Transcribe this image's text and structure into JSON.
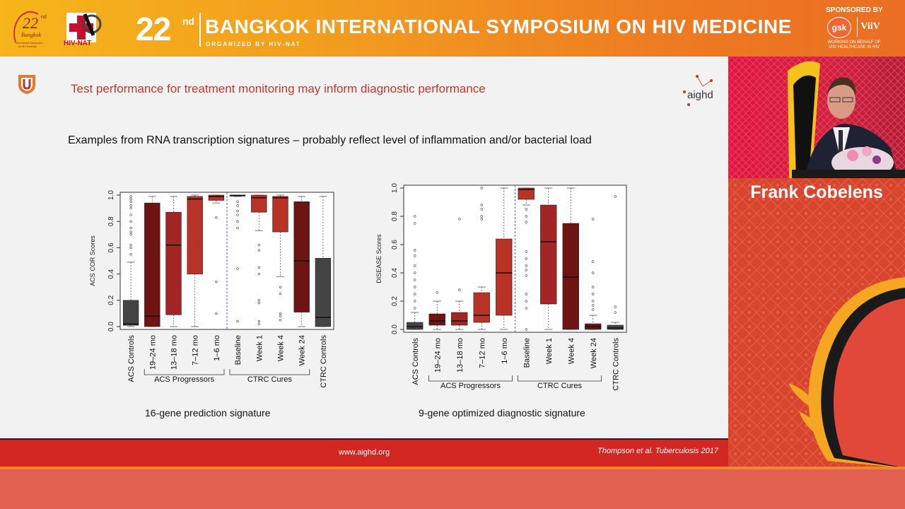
{
  "banner": {
    "edition": "22",
    "edition_sup": "nd",
    "title": "BANGKOK INTERNATIONAL SYMPOSIUM ON HIV MEDICINE",
    "organized_by": "ORGANIZED BY HIV-NAT",
    "logo_text": "HIV-NAT",
    "sponsored_by": "SPONSORED BY",
    "sponsor1": "gsk",
    "sponsor2": "ViiV",
    "sponsor_tag": "WORKING ON BEHALF OF VIIV HEALTHCARE IN HIV"
  },
  "slide": {
    "title": "Test performance for treatment monitoring may inform diagnostic performance",
    "logo": "aighd",
    "subtitle": "Examples from RNA transcription signatures – probably reflect level of inflammation and/or bacterial load",
    "footer_url": "www.aighd.org",
    "reference": "Thompson et al. Tuberculosis 2017"
  },
  "speaker": {
    "name": "Frank Cobelens"
  },
  "colors": {
    "dark_box": "#444444",
    "maroon": "#6e1414",
    "red": "#a42525",
    "bright_red": "#b83226",
    "accent_title": "#c0392b",
    "footer": "#d32724"
  },
  "chart_data": [
    {
      "type": "box",
      "title": "16-gene prediction signature",
      "ylabel": "ACS COR Scores",
      "ylim": [
        0,
        1
      ],
      "yticks": [
        "0.0",
        "0.2",
        "0.4",
        "0.6",
        "0.8",
        "1.0"
      ],
      "categories": [
        "ACS Controls",
        "19–24 mo",
        "13–18 mo",
        "7–12 mo",
        "1–6 mo",
        "Baseline",
        "Week 1",
        "Week 4",
        "Week 24",
        "CTRC Controls"
      ],
      "groups": [
        {
          "label": "ACS Progressors",
          "from": 1,
          "to": 4
        },
        {
          "label": "CTRC Cures",
          "from": 5,
          "to": 8
        }
      ],
      "boxes": [
        {
          "q1": 0.01,
          "median": 0.02,
          "q3": 0.2,
          "lo": 0.0,
          "hi": 0.49,
          "color": "dark"
        },
        {
          "q1": 0.0,
          "median": 0.08,
          "q3": 0.94,
          "lo": 0.0,
          "hi": 0.99,
          "color": "maroon"
        },
        {
          "q1": 0.09,
          "median": 0.62,
          "q3": 0.87,
          "lo": 0.0,
          "hi": 0.99,
          "color": "red"
        },
        {
          "q1": 0.4,
          "median": 0.97,
          "q3": 0.99,
          "lo": 0.0,
          "hi": 1.0,
          "color": "bright"
        },
        {
          "q1": 0.96,
          "median": 0.99,
          "q3": 1.0,
          "lo": 0.94,
          "hi": 1.0,
          "color": "bright"
        },
        {
          "q1": 0.995,
          "median": 0.998,
          "q3": 1.0,
          "lo": 0.99,
          "hi": 1.0,
          "color": "dark"
        },
        {
          "q1": 0.87,
          "median": 0.98,
          "q3": 1.0,
          "lo": 0.73,
          "hi": 1.0,
          "color": "bright"
        },
        {
          "q1": 0.72,
          "median": 0.98,
          "q3": 0.99,
          "lo": 0.38,
          "hi": 1.0,
          "color": "bright"
        },
        {
          "q1": 0.11,
          "median": 0.5,
          "q3": 0.95,
          "lo": 0.0,
          "hi": 0.99,
          "color": "maroon"
        },
        {
          "q1": 0.0,
          "median": 0.07,
          "q3": 0.52,
          "lo": 0.0,
          "hi": 0.99,
          "color": "dark"
        }
      ],
      "outliers": [
        [
          0.55,
          0.6,
          0.62,
          0.7,
          0.72,
          0.75,
          0.8,
          0.85,
          0.9,
          0.92,
          0.95,
          0.97,
          0.99
        ],
        [],
        [],
        [],
        [
          0.83,
          0.34,
          0.1
        ],
        [
          0.95,
          0.92,
          0.88,
          0.85,
          0.8,
          0.75,
          0.44,
          0.04
        ],
        [
          0.62,
          0.58,
          0.45,
          0.4,
          0.2,
          0.18,
          0.04,
          0.02
        ],
        [
          0.3,
          0.25,
          0.1,
          0.08,
          0.05
        ],
        [],
        []
      ]
    },
    {
      "type": "box",
      "title": "9-gene optimized diagnostic signature",
      "ylabel": "DISEASE Scores",
      "ylim": [
        0,
        1
      ],
      "yticks": [
        "0.0",
        "0.2",
        "0.4",
        "0.6",
        "0.8",
        "1.0"
      ],
      "categories": [
        "ACS Controls",
        "19–24 mo",
        "13–18 mo",
        "7–12 mo",
        "1–6 mo",
        "Baseline",
        "Week 1",
        "Week 4",
        "Week 24",
        "CTRC Controls"
      ],
      "groups": [
        {
          "label": "ACS Progressors",
          "from": 1,
          "to": 4
        },
        {
          "label": "CTRC Cures",
          "from": 5,
          "to": 8
        }
      ],
      "boxes": [
        {
          "q1": 0.0,
          "median": 0.02,
          "q3": 0.05,
          "lo": 0.0,
          "hi": 0.12,
          "color": "dark"
        },
        {
          "q1": 0.03,
          "median": 0.06,
          "q3": 0.11,
          "lo": 0.0,
          "hi": 0.2,
          "color": "maroon"
        },
        {
          "q1": 0.03,
          "median": 0.06,
          "q3": 0.12,
          "lo": 0.0,
          "hi": 0.2,
          "color": "red"
        },
        {
          "q1": 0.05,
          "median": 0.1,
          "q3": 0.26,
          "lo": 0.0,
          "hi": 0.3,
          "color": "bright"
        },
        {
          "q1": 0.1,
          "median": 0.4,
          "q3": 0.64,
          "lo": 0.0,
          "hi": 1.0,
          "color": "bright"
        },
        {
          "q1": 0.92,
          "median": 0.99,
          "q3": 1.0,
          "lo": 0.88,
          "hi": 1.0,
          "color": "bright"
        },
        {
          "q1": 0.18,
          "median": 0.62,
          "q3": 0.88,
          "lo": 0.0,
          "hi": 1.0,
          "color": "red"
        },
        {
          "q1": 0.0,
          "median": 0.37,
          "q3": 0.75,
          "lo": 0.0,
          "hi": 1.0,
          "color": "maroon"
        },
        {
          "q1": 0.0,
          "median": 0.02,
          "q3": 0.04,
          "lo": 0.0,
          "hi": 0.1,
          "color": "maroon"
        },
        {
          "q1": 0.0,
          "median": 0.01,
          "q3": 0.03,
          "lo": 0.0,
          "hi": 0.05,
          "color": "dark"
        }
      ],
      "outliers": [
        [
          0.8,
          0.75,
          0.56,
          0.52,
          0.45,
          0.4,
          0.35,
          0.3,
          0.25,
          0.2,
          0.15
        ],
        [
          0.26
        ],
        [
          0.78,
          0.28
        ],
        [
          1.0,
          0.88,
          0.85,
          0.8,
          0.78
        ],
        [],
        [
          0.85,
          0.8,
          0.76,
          0.55,
          0.5,
          0.45,
          0.42,
          0.38,
          0.25,
          0.2,
          0.15,
          0.0
        ],
        [],
        [],
        [
          0.78,
          0.48,
          0.4,
          0.3,
          0.25,
          0.2,
          0.17,
          0.14
        ],
        [
          0.94,
          0.16,
          0.12
        ]
      ]
    }
  ]
}
